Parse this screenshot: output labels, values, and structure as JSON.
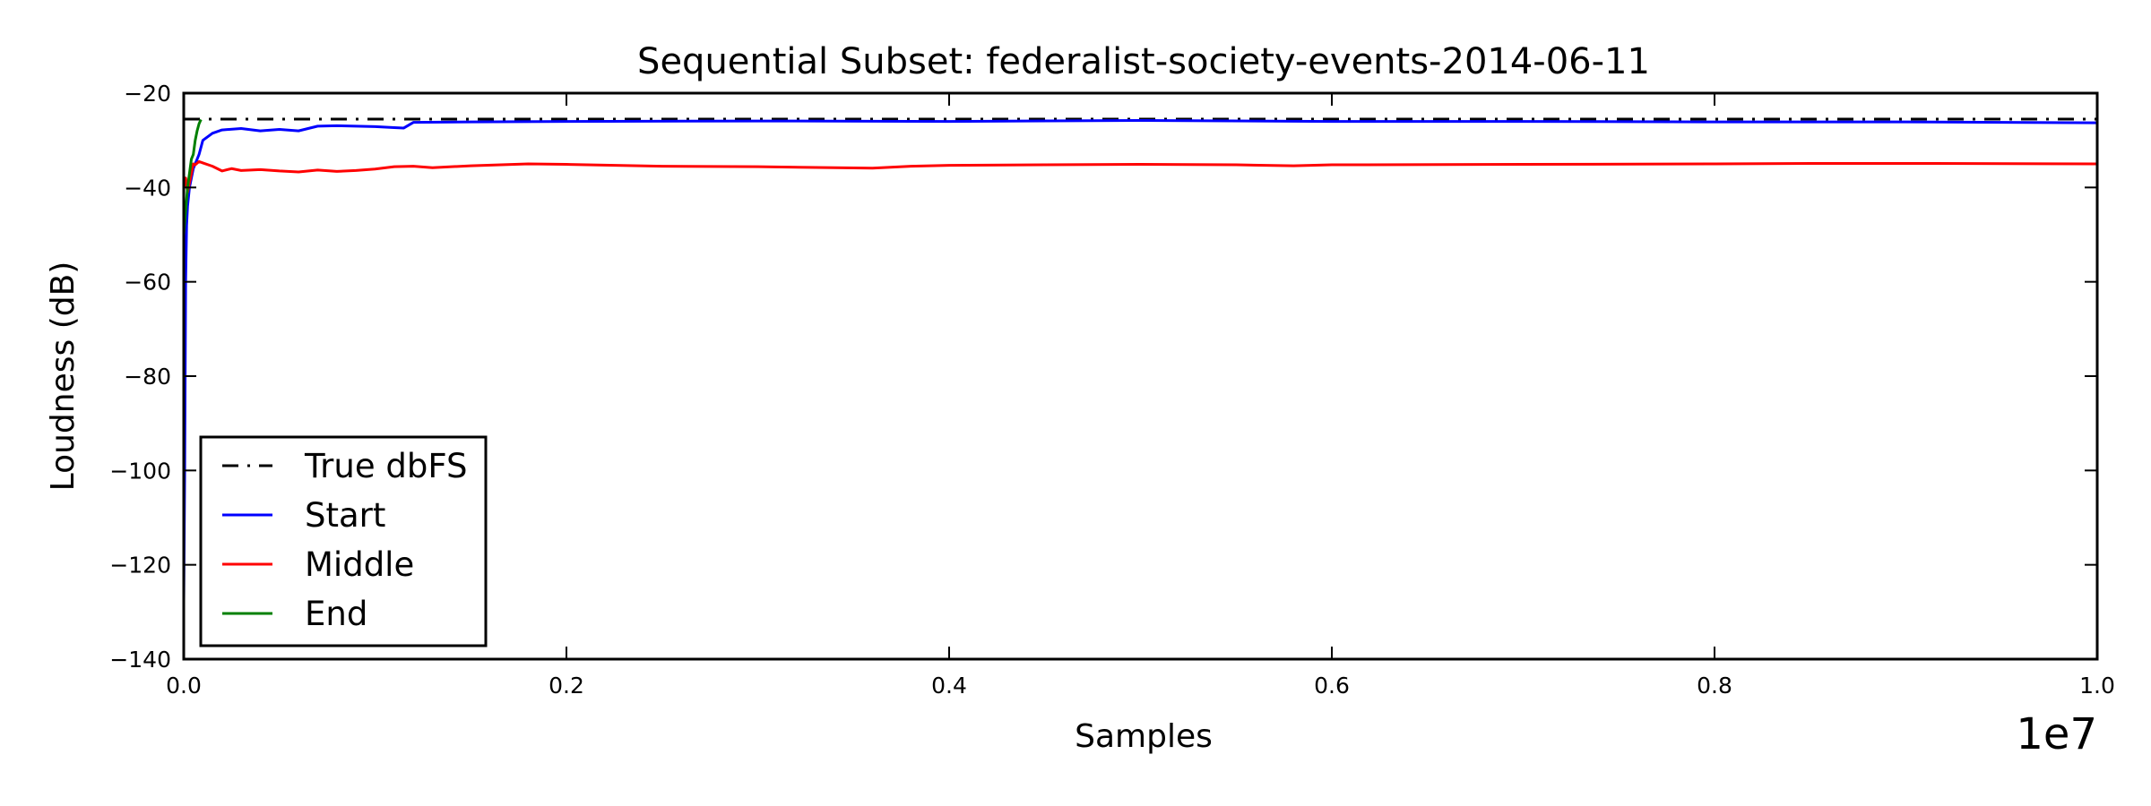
{
  "chart_data": {
    "type": "line",
    "title": "Sequential Subset: federalist-society-events-2014-06-11",
    "xlabel": "Samples",
    "ylabel": "Loudness (dB)",
    "x_scale_label": "1e7",
    "xlim": [
      0,
      1.0
    ],
    "ylim": [
      -140,
      -20
    ],
    "x_ticks": [
      0.0,
      0.2,
      0.4,
      0.6,
      0.8,
      1.0
    ],
    "x_tick_labels": [
      "0.0",
      "0.2",
      "0.4",
      "0.6",
      "0.8",
      "1.0"
    ],
    "y_ticks": [
      -20,
      -40,
      -60,
      -80,
      -100,
      -120,
      -140
    ],
    "y_tick_labels": [
      "−20",
      "−40",
      "−60",
      "−80",
      "−100",
      "−120",
      "−140"
    ],
    "grid": false,
    "legend_position": "lower-left",
    "series": [
      {
        "name": "True dbFS",
        "color": "#000000",
        "style": "dash-dot",
        "x": [
          0.0,
          1.0
        ],
        "y": [
          -25.5,
          -25.5
        ]
      },
      {
        "name": "Start",
        "color": "#0000ff",
        "style": "solid",
        "x": [
          0.0,
          0.0005,
          0.001,
          0.0015,
          0.002,
          0.003,
          0.005,
          0.008,
          0.01,
          0.015,
          0.02,
          0.03,
          0.04,
          0.05,
          0.06,
          0.07,
          0.08,
          0.09,
          0.1,
          0.11,
          0.115,
          0.12,
          0.15,
          0.2,
          0.3,
          0.4,
          0.5,
          0.6,
          0.7,
          0.8,
          0.9,
          1.0
        ],
        "y": [
          -128,
          -100,
          -60,
          -48,
          -44,
          -40,
          -36,
          -33,
          -30,
          -28.5,
          -27.8,
          -27.5,
          -28,
          -27.7,
          -28,
          -27,
          -26.9,
          -27,
          -27.1,
          -27.3,
          -27.4,
          -26.2,
          -26.1,
          -26.0,
          -25.9,
          -26.0,
          -25.8,
          -26.0,
          -26.0,
          -26.1,
          -26.1,
          -26.3
        ]
      },
      {
        "name": "Middle",
        "color": "#ff0000",
        "style": "solid",
        "x": [
          0.0,
          0.001,
          0.002,
          0.003,
          0.004,
          0.005,
          0.006,
          0.008,
          0.01,
          0.015,
          0.02,
          0.025,
          0.03,
          0.04,
          0.05,
          0.06,
          0.07,
          0.08,
          0.09,
          0.1,
          0.11,
          0.12,
          0.13,
          0.15,
          0.18,
          0.2,
          0.25,
          0.3,
          0.36,
          0.38,
          0.4,
          0.45,
          0.5,
          0.55,
          0.58,
          0.6,
          0.7,
          0.8,
          0.85,
          0.9,
          1.0
        ],
        "y": [
          -40,
          -38,
          -41,
          -39,
          -37,
          -35,
          -35.2,
          -34.5,
          -34.8,
          -35.5,
          -36.5,
          -36,
          -36.4,
          -36.2,
          -36.5,
          -36.7,
          -36.3,
          -36.6,
          -36.4,
          -36.1,
          -35.6,
          -35.5,
          -35.8,
          -35.4,
          -35.0,
          -35.1,
          -35.5,
          -35.6,
          -35.9,
          -35.5,
          -35.3,
          -35.2,
          -35.1,
          -35.2,
          -35.4,
          -35.2,
          -35.1,
          -35.0,
          -34.9,
          -34.9,
          -35.0
        ]
      },
      {
        "name": "End",
        "color": "#008000",
        "style": "solid",
        "x": [
          0.0,
          0.001,
          0.002,
          0.003,
          0.004,
          0.005,
          0.006,
          0.007,
          0.008,
          0.009
        ],
        "y": [
          -50,
          -45,
          -40,
          -37,
          -34,
          -33,
          -30,
          -28,
          -26.5,
          -25.6
        ]
      }
    ]
  }
}
